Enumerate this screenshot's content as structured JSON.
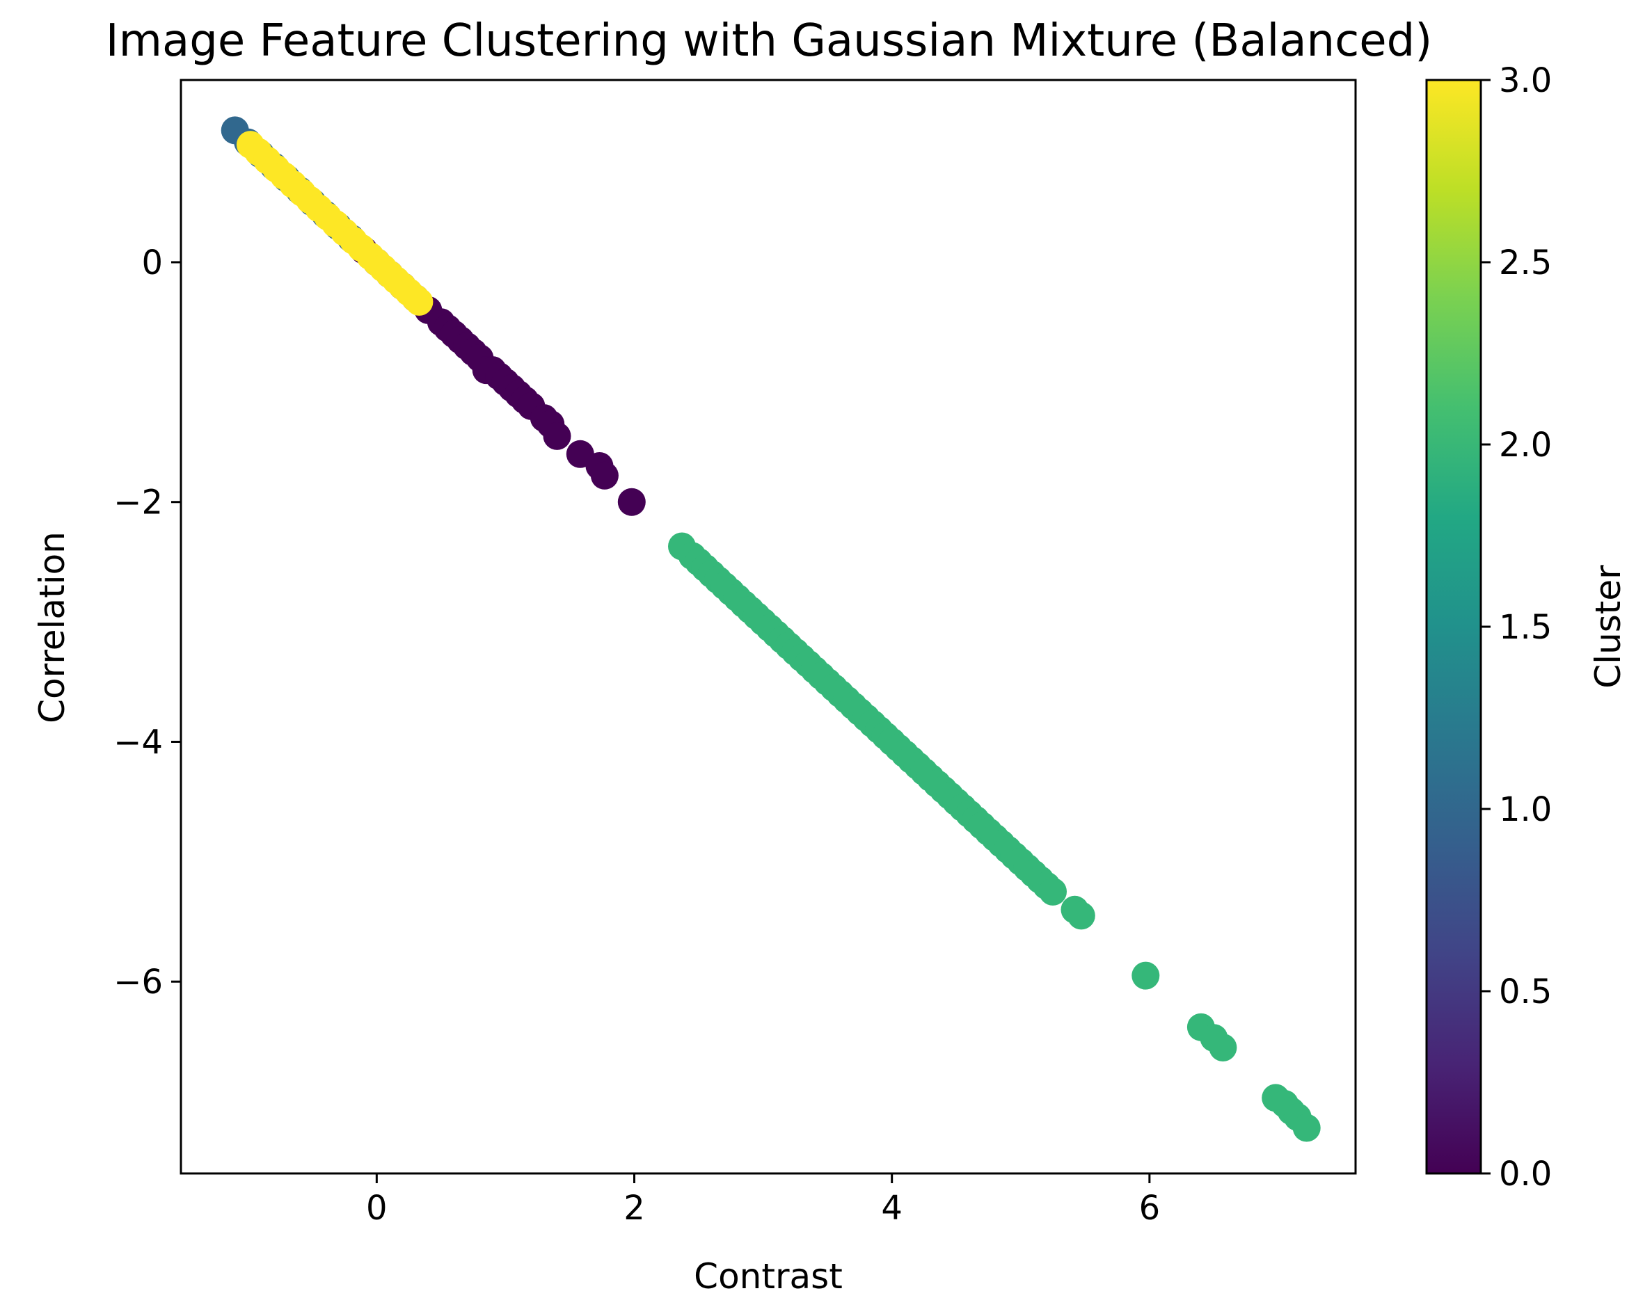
{
  "chart_data": {
    "type": "scatter",
    "title": "Image Feature Clustering with Gaussian Mixture (Balanced)",
    "xlabel": "Contrast",
    "ylabel": "Correlation",
    "xlim": [
      -1.52,
      7.6
    ],
    "ylim": [
      -7.6,
      1.52
    ],
    "xticks": [
      0,
      2,
      4,
      6
    ],
    "yticks": [
      0,
      -2,
      -4,
      -6
    ],
    "xtick_labels": [
      "0",
      "2",
      "4",
      "6"
    ],
    "ytick_labels": [
      "0",
      "−2",
      "−4",
      "−6"
    ],
    "grid": false,
    "colorbar": {
      "label": "Cluster",
      "range": [
        0.0,
        3.0
      ],
      "ticks": [
        0.0,
        0.5,
        1.0,
        1.5,
        2.0,
        2.5,
        3.0
      ],
      "tick_labels": [
        "0.0",
        "0.5",
        "1.0",
        "1.5",
        "2.0",
        "2.5",
        "3.0"
      ],
      "colormap": "viridis"
    },
    "cluster_colors": {
      "0": "#440154",
      "1": "#31688e",
      "2": "#35b779",
      "3": "#fde725"
    },
    "series": [
      {
        "cluster": 0,
        "points": [
          [
            -0.2,
            0.2
          ],
          [
            -0.1,
            0.1
          ],
          [
            0.0,
            0.0
          ],
          [
            0.1,
            -0.1
          ],
          [
            0.2,
            -0.2
          ],
          [
            0.3,
            -0.3
          ],
          [
            0.4,
            -0.4
          ],
          [
            0.5,
            -0.5
          ],
          [
            0.55,
            -0.55
          ],
          [
            0.6,
            -0.6
          ],
          [
            0.65,
            -0.65
          ],
          [
            0.7,
            -0.7
          ],
          [
            0.75,
            -0.75
          ],
          [
            0.8,
            -0.8
          ],
          [
            0.85,
            -0.9
          ],
          [
            0.9,
            -0.9
          ],
          [
            0.95,
            -0.95
          ],
          [
            1.0,
            -1.0
          ],
          [
            1.05,
            -1.05
          ],
          [
            1.1,
            -1.1
          ],
          [
            1.15,
            -1.15
          ],
          [
            1.2,
            -1.2
          ],
          [
            1.3,
            -1.3
          ],
          [
            1.35,
            -1.35
          ],
          [
            1.4,
            -1.45
          ],
          [
            1.58,
            -1.6
          ],
          [
            1.73,
            -1.7
          ],
          [
            1.77,
            -1.78
          ],
          [
            1.98,
            -2.0
          ]
        ]
      },
      {
        "cluster": 1,
        "points": [
          [
            -1.1,
            1.1
          ],
          [
            -1.0,
            1.0
          ],
          [
            -0.9,
            0.9
          ],
          [
            -0.8,
            0.8
          ],
          [
            -0.7,
            0.7
          ],
          [
            -0.6,
            0.6
          ],
          [
            -0.5,
            0.5
          ],
          [
            -0.4,
            0.4
          ],
          [
            -0.3,
            0.3
          ],
          [
            -0.2,
            0.2
          ]
        ]
      },
      {
        "cluster": 2,
        "points": [
          [
            2.37,
            -2.37
          ],
          [
            2.45,
            -2.45
          ],
          [
            2.5,
            -2.5
          ],
          [
            2.55,
            -2.55
          ],
          [
            2.6,
            -2.6
          ],
          [
            2.65,
            -2.65
          ],
          [
            2.7,
            -2.7
          ],
          [
            2.75,
            -2.75
          ],
          [
            2.8,
            -2.8
          ],
          [
            2.85,
            -2.85
          ],
          [
            2.9,
            -2.9
          ],
          [
            2.95,
            -2.95
          ],
          [
            3.0,
            -3.0
          ],
          [
            3.05,
            -3.05
          ],
          [
            3.1,
            -3.1
          ],
          [
            3.15,
            -3.15
          ],
          [
            3.2,
            -3.2
          ],
          [
            3.25,
            -3.25
          ],
          [
            3.3,
            -3.3
          ],
          [
            3.35,
            -3.35
          ],
          [
            3.4,
            -3.4
          ],
          [
            3.45,
            -3.45
          ],
          [
            3.5,
            -3.5
          ],
          [
            3.55,
            -3.55
          ],
          [
            3.6,
            -3.6
          ],
          [
            3.65,
            -3.65
          ],
          [
            3.7,
            -3.7
          ],
          [
            3.75,
            -3.75
          ],
          [
            3.8,
            -3.8
          ],
          [
            3.85,
            -3.85
          ],
          [
            3.9,
            -3.9
          ],
          [
            3.95,
            -3.95
          ],
          [
            4.0,
            -4.0
          ],
          [
            4.05,
            -4.05
          ],
          [
            4.1,
            -4.1
          ],
          [
            4.15,
            -4.15
          ],
          [
            4.2,
            -4.2
          ],
          [
            4.25,
            -4.25
          ],
          [
            4.3,
            -4.3
          ],
          [
            4.35,
            -4.35
          ],
          [
            4.4,
            -4.4
          ],
          [
            4.45,
            -4.45
          ],
          [
            4.5,
            -4.5
          ],
          [
            4.55,
            -4.55
          ],
          [
            4.6,
            -4.6
          ],
          [
            4.65,
            -4.65
          ],
          [
            4.7,
            -4.7
          ],
          [
            4.75,
            -4.75
          ],
          [
            4.8,
            -4.8
          ],
          [
            4.85,
            -4.85
          ],
          [
            4.9,
            -4.9
          ],
          [
            4.95,
            -4.95
          ],
          [
            5.0,
            -5.0
          ],
          [
            5.05,
            -5.05
          ],
          [
            5.1,
            -5.1
          ],
          [
            5.15,
            -5.15
          ],
          [
            5.2,
            -5.2
          ],
          [
            5.25,
            -5.25
          ],
          [
            5.42,
            -5.4
          ],
          [
            5.47,
            -5.45
          ],
          [
            5.97,
            -5.95
          ],
          [
            6.4,
            -6.38
          ],
          [
            6.5,
            -6.47
          ],
          [
            6.57,
            -6.55
          ],
          [
            6.98,
            -6.97
          ],
          [
            7.05,
            -7.02
          ],
          [
            7.1,
            -7.08
          ],
          [
            7.15,
            -7.13
          ],
          [
            7.22,
            -7.22
          ]
        ]
      },
      {
        "cluster": 3,
        "points": [
          [
            -0.98,
            0.98
          ],
          [
            -0.92,
            0.92
          ],
          [
            -0.85,
            0.85
          ],
          [
            -0.78,
            0.78
          ],
          [
            -0.72,
            0.72
          ],
          [
            -0.65,
            0.65
          ],
          [
            -0.58,
            0.58
          ],
          [
            -0.52,
            0.52
          ],
          [
            -0.45,
            0.45
          ],
          [
            -0.38,
            0.38
          ],
          [
            -0.32,
            0.32
          ],
          [
            -0.25,
            0.25
          ],
          [
            -0.18,
            0.18
          ],
          [
            -0.12,
            0.12
          ],
          [
            -0.05,
            0.05
          ],
          [
            0.0,
            0.0
          ],
          [
            0.05,
            -0.05
          ],
          [
            0.1,
            -0.1
          ],
          [
            0.15,
            -0.15
          ],
          [
            0.2,
            -0.2
          ],
          [
            0.25,
            -0.25
          ],
          [
            0.3,
            -0.3
          ],
          [
            0.33,
            -0.33
          ]
        ]
      }
    ]
  }
}
